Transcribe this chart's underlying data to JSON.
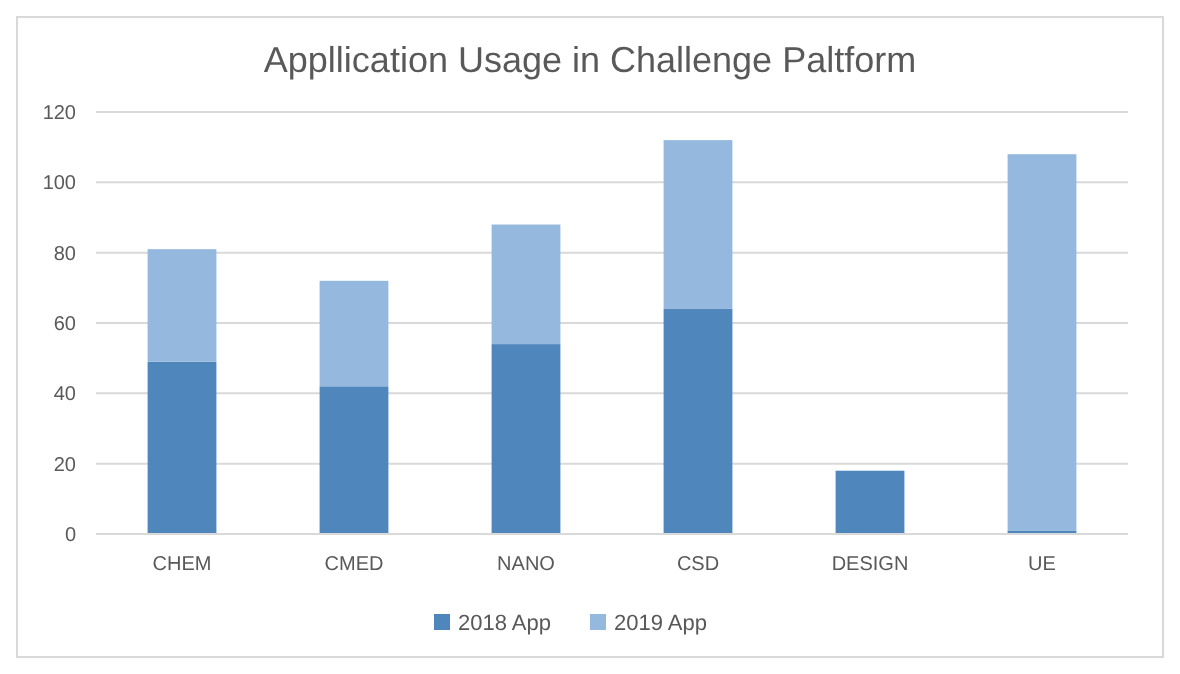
{
  "chart_data": {
    "type": "bar",
    "title": "Appllication Usage in Challenge Paltform",
    "categories": [
      "CHEM",
      "CMED",
      "NANO",
      "CSD",
      "DESIGN",
      "UE"
    ],
    "series": [
      {
        "name": "2018 App",
        "color": "#4f86bc",
        "values": [
          49,
          42,
          54,
          64,
          18,
          1
        ]
      },
      {
        "name": "2019 App",
        "color": "#95b8de",
        "values": [
          32,
          30,
          34,
          48,
          0,
          107
        ]
      }
    ],
    "stacked": true,
    "ylim": [
      0,
      120
    ],
    "yticks": [
      0,
      20,
      40,
      60,
      80,
      100,
      120
    ],
    "grid": "y",
    "legend": "bottom"
  }
}
